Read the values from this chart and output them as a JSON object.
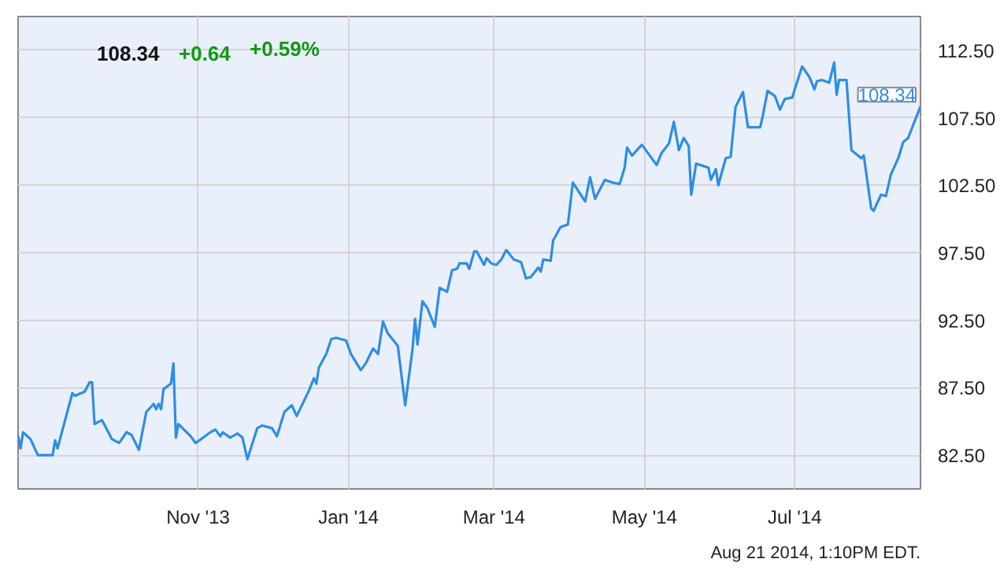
{
  "chart_data": {
    "type": "line",
    "title": "108.34",
    "annotations": [
      "+0.64",
      "+0.59%",
      "Aug 21 2014, 1:10PM EDT.",
      {
        "text": "108.34",
        "x": "2014-08-21",
        "y": 108.34
      }
    ],
    "x": [
      "2013-08-20",
      "2013-08-21",
      "2013-08-22",
      "2013-08-25",
      "2013-08-28",
      "2013-09-03",
      "2013-09-04",
      "2013-09-05",
      "2013-09-11",
      "2013-09-12",
      "2013-09-16",
      "2013-09-18",
      "2013-09-19",
      "2013-09-20",
      "2013-09-23",
      "2013-09-27",
      "2013-09-30",
      "2013-10-03",
      "2013-10-05",
      "2013-10-08",
      "2013-10-11",
      "2013-10-14",
      "2013-10-15",
      "2013-10-16",
      "2013-10-17",
      "2013-10-18",
      "2013-10-21",
      "2013-10-22",
      "2013-10-23",
      "2013-10-24",
      "2013-10-29",
      "2013-10-31",
      "2013-11-06",
      "2013-11-08",
      "2013-11-10",
      "2013-11-11",
      "2013-11-14",
      "2013-11-17",
      "2013-11-19",
      "2013-11-21",
      "2013-11-25",
      "2013-11-27",
      "2013-12-01",
      "2013-12-03",
      "2013-12-06",
      "2013-12-09",
      "2013-12-11",
      "2013-12-16",
      "2013-12-18",
      "2013-12-19",
      "2013-12-20",
      "2013-12-23",
      "2013-12-25",
      "2013-12-27",
      "2013-12-31",
      "2014-01-02",
      "2014-01-06",
      "2014-01-08",
      "2014-01-11",
      "2014-01-13",
      "2014-01-15",
      "2014-01-17",
      "2014-01-21",
      "2014-01-24",
      "2014-01-27",
      "2014-01-28",
      "2014-01-29",
      "2014-01-31",
      "2014-02-02",
      "2014-02-05",
      "2014-02-07",
      "2014-02-10",
      "2014-02-12",
      "2014-02-14",
      "2014-02-15",
      "2014-02-18",
      "2014-02-19",
      "2014-02-21",
      "2014-02-22",
      "2014-02-25",
      "2014-02-26",
      "2014-02-28",
      "2014-03-02",
      "2014-03-04",
      "2014-03-06",
      "2014-03-09",
      "2014-03-12",
      "2014-03-14",
      "2014-03-16",
      "2014-03-19",
      "2014-03-20",
      "2014-03-21",
      "2014-03-24",
      "2014-03-25",
      "2014-03-28",
      "2014-03-31",
      "2014-04-02",
      "2014-04-07",
      "2014-04-09",
      "2014-04-11",
      "2014-04-15",
      "2014-04-18",
      "2014-04-21",
      "2014-04-23",
      "2014-04-24",
      "2014-04-26",
      "2014-04-30",
      "2014-05-06",
      "2014-05-08",
      "2014-05-11",
      "2014-05-13",
      "2014-05-15",
      "2014-05-17",
      "2014-05-19",
      "2014-05-20",
      "2014-05-22",
      "2014-05-27",
      "2014-05-28",
      "2014-05-30",
      "2014-05-31",
      "2014-06-03",
      "2014-06-05",
      "2014-06-07",
      "2014-06-10",
      "2014-06-12",
      "2014-06-17",
      "2014-06-18",
      "2014-06-20",
      "2014-06-23",
      "2014-06-25",
      "2014-06-27",
      "2014-06-30",
      "2014-07-01",
      "2014-07-04",
      "2014-07-07",
      "2014-07-09",
      "2014-07-10",
      "2014-07-12",
      "2014-07-15",
      "2014-07-17",
      "2014-07-18",
      "2014-07-19",
      "2014-07-22",
      "2014-07-24",
      "2014-07-28",
      "2014-07-29",
      "2014-08-01",
      "2014-08-02",
      "2014-08-05",
      "2014-08-07",
      "2014-08-09",
      "2014-08-12",
      "2014-08-14",
      "2014-08-16",
      "2014-08-21"
    ],
    "series": [
      {
        "color": "#2f8de4",
        "values": [
          83.9,
          83.0,
          84.2,
          83.7,
          82.5,
          82.5,
          83.6,
          83.0,
          87.1,
          86.9,
          87.2,
          87.9,
          87.9,
          84.8,
          85.1,
          83.7,
          83.4,
          84.2,
          84.0,
          82.9,
          85.7,
          86.3,
          85.9,
          86.3,
          85.9,
          87.4,
          87.8,
          89.3,
          83.8,
          84.8,
          83.9,
          83.4,
          84.2,
          84.4,
          83.9,
          84.2,
          83.8,
          84.1,
          83.8,
          82.2,
          84.5,
          84.7,
          84.5,
          83.9,
          85.7,
          86.2,
          85.4,
          87.3,
          88.2,
          87.8,
          89.0,
          90.0,
          91.1,
          91.2,
          91.0,
          90.0,
          88.8,
          89.3,
          90.4,
          90.0,
          92.4,
          91.5,
          90.6,
          86.2,
          90.4,
          92.6,
          90.7,
          93.9,
          93.4,
          92.0,
          94.9,
          94.6,
          96.2,
          96.3,
          96.7,
          96.7,
          96.3,
          97.6,
          97.6,
          96.6,
          97.1,
          96.7,
          96.6,
          97.0,
          97.7,
          97.0,
          96.8,
          95.6,
          95.7,
          96.4,
          96.1,
          97.0,
          96.9,
          98.4,
          99.4,
          99.6,
          102.7,
          101.3,
          103.1,
          101.5,
          102.9,
          102.7,
          102.6,
          103.8,
          105.3,
          104.7,
          105.5,
          104.0,
          104.9,
          105.6,
          107.2,
          105.1,
          106.0,
          105.4,
          101.8,
          104.1,
          103.8,
          102.9,
          103.7,
          102.5,
          104.5,
          104.6,
          108.3,
          109.4,
          106.8,
          106.8,
          107.6,
          109.5,
          109.1,
          108.1,
          108.9,
          109.0,
          109.6,
          111.3,
          110.5,
          109.6,
          110.2,
          110.3,
          110.1,
          111.6,
          109.2,
          110.3,
          110.3,
          105.1,
          104.5,
          104.7,
          100.8,
          100.6,
          101.8,
          101.7,
          103.3,
          104.5,
          105.7,
          106.0,
          108.34
        ]
      }
    ],
    "xlim": [
      "2013-08-20",
      "2014-08-21"
    ],
    "ylim": [
      80,
      115
    ],
    "xticks": [
      {
        "value": "2013-11-01",
        "label": "Nov '13"
      },
      {
        "value": "2014-01-01",
        "label": "Jan '14"
      },
      {
        "value": "2014-03-01",
        "label": "Mar '14"
      },
      {
        "value": "2014-05-01",
        "label": "May '14"
      },
      {
        "value": "2014-07-01",
        "label": "Jul '14"
      }
    ],
    "yticks": [
      {
        "value": 82.5,
        "label": "82.50"
      },
      {
        "value": 87.5,
        "label": "87.50"
      },
      {
        "value": 92.5,
        "label": "92.50"
      },
      {
        "value": 97.5,
        "label": "97.50"
      },
      {
        "value": 102.5,
        "label": "102.50"
      },
      {
        "value": 107.5,
        "label": "107.50"
      },
      {
        "value": 112.5,
        "label": "112.50"
      }
    ],
    "grid": true,
    "marker": "none",
    "line_style": "solid"
  }
}
